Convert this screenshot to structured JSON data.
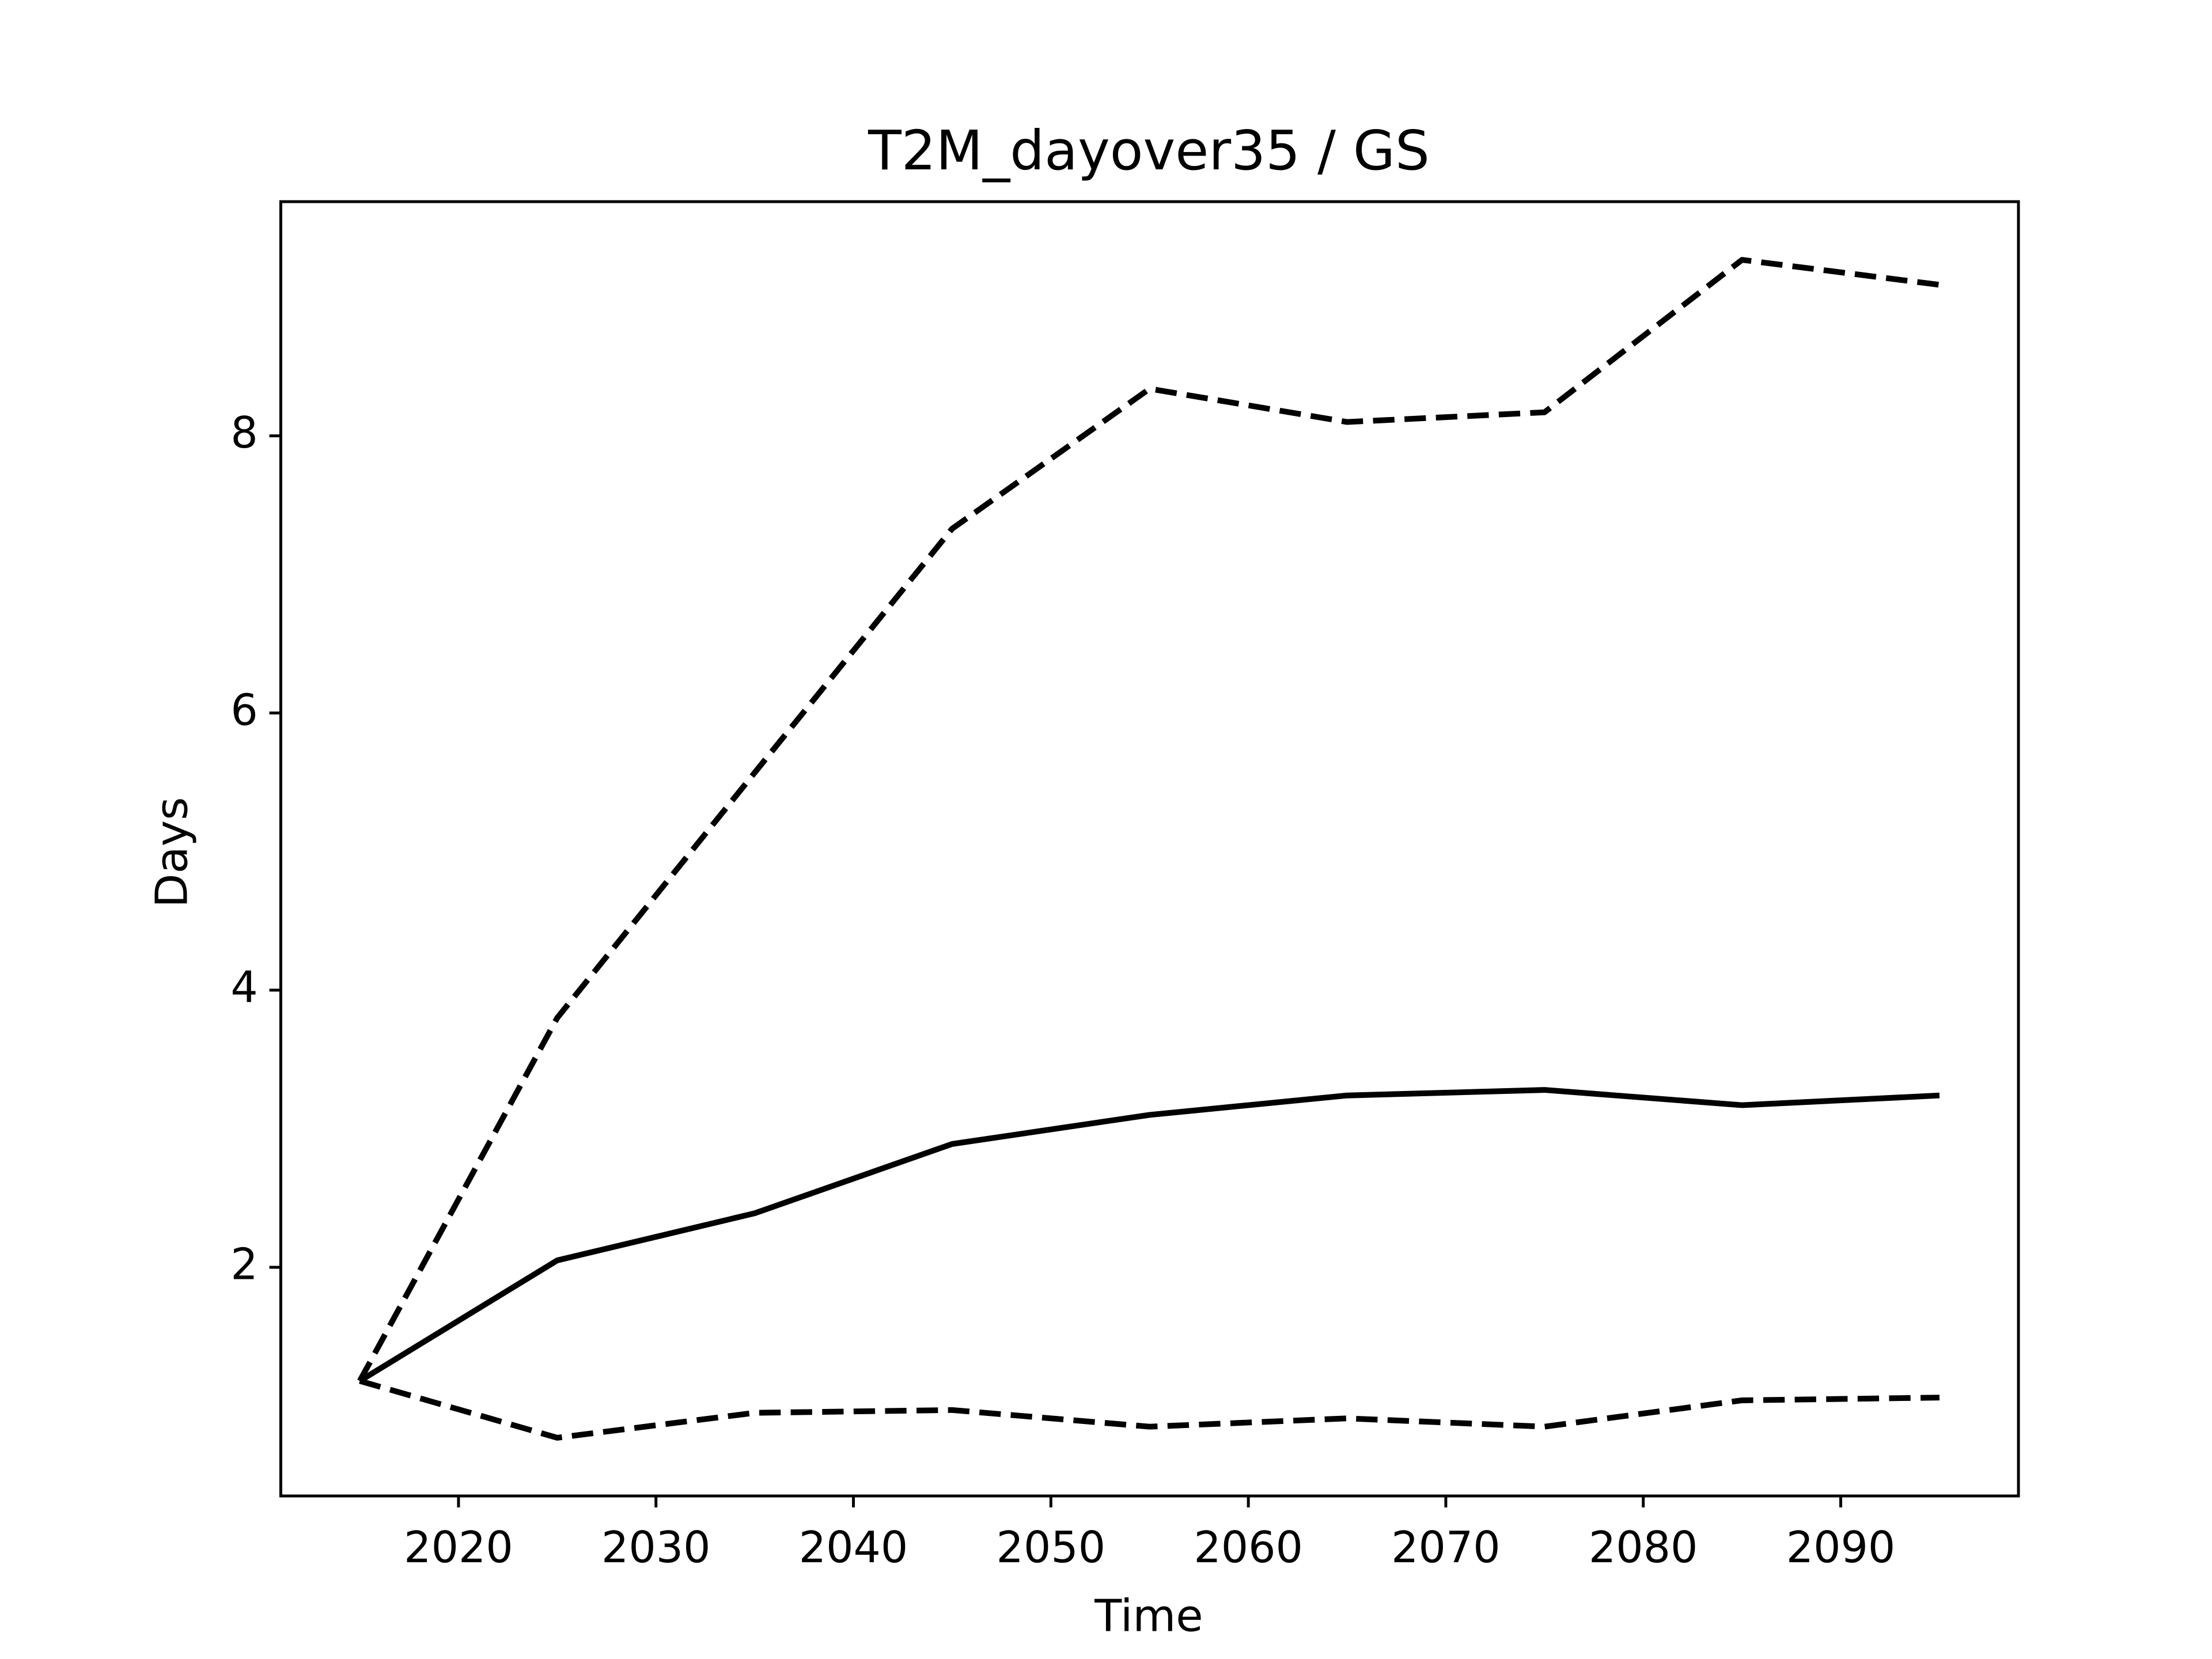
{
  "chart_data": {
    "type": "line",
    "title": "T2M_dayover35 / GS",
    "xlabel": "Time",
    "ylabel": "Days",
    "x": [
      2015,
      2025,
      2035,
      2045,
      2055,
      2065,
      2075,
      2085,
      2095
    ],
    "series": [
      {
        "color": "#000000",
        "linestyle": "solid",
        "values": [
          1.18,
          2.05,
          2.39,
          2.89,
          3.1,
          3.24,
          3.28,
          3.17,
          3.24
        ]
      },
      {
        "color": "#000000",
        "linestyle": "dashed",
        "values": [
          1.18,
          3.8,
          5.57,
          7.33,
          8.34,
          8.1,
          8.17,
          9.27,
          9.09
        ]
      },
      {
        "color": "#000000",
        "linestyle": "dashed",
        "values": [
          1.18,
          0.77,
          0.95,
          0.97,
          0.85,
          0.91,
          0.85,
          1.04,
          1.06
        ]
      }
    ],
    "xlim": [
      2011,
      2099
    ],
    "xticks": [
      2020,
      2030,
      2040,
      2050,
      2060,
      2070,
      2080,
      2090
    ],
    "ylim": [
      0.35,
      9.69
    ],
    "yticks": [
      2,
      4,
      6,
      8
    ],
    "grid": false
  }
}
